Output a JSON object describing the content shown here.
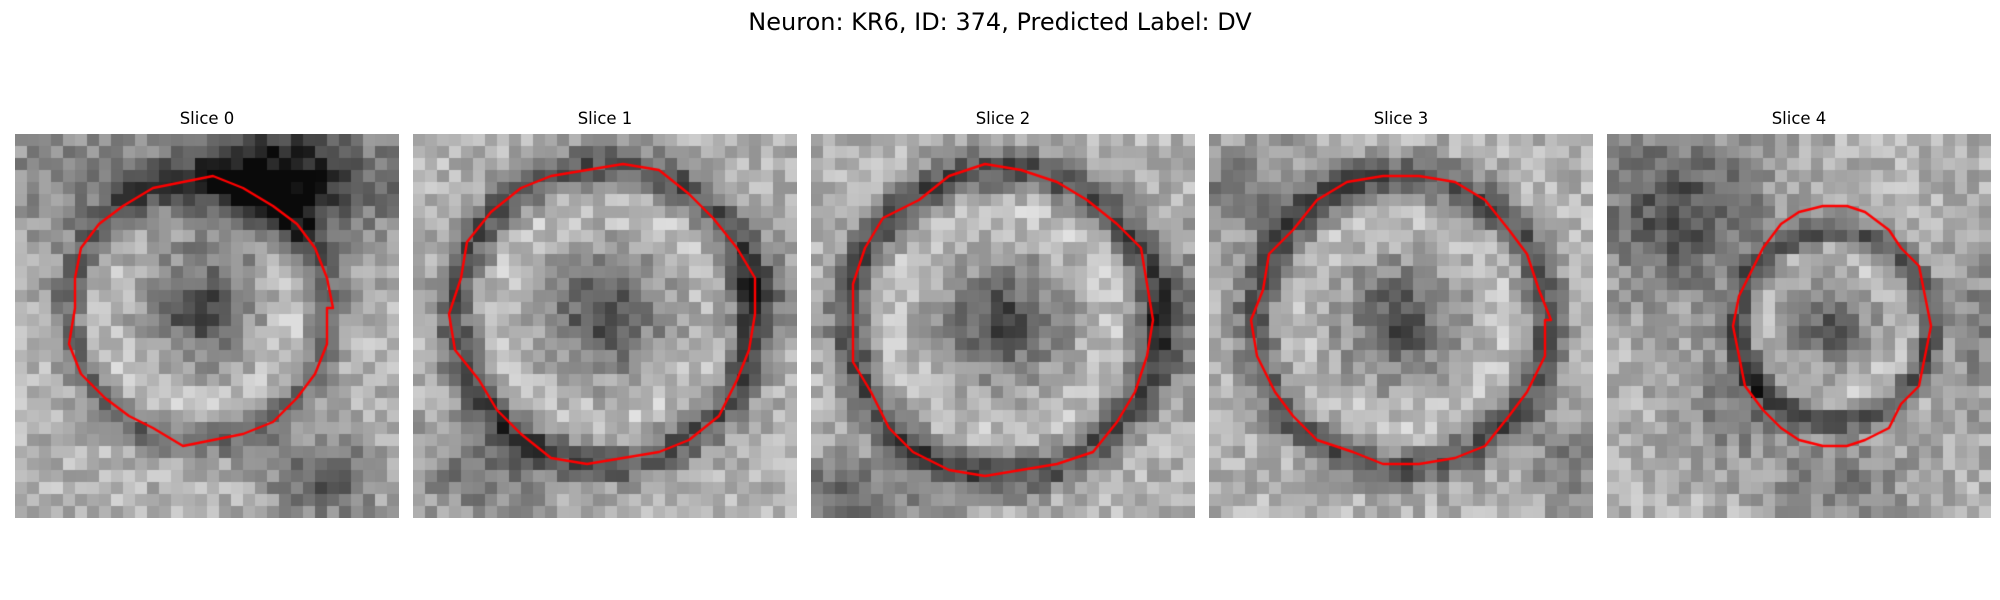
{
  "figure": {
    "title": "Neuron: KR6, ID: 374, Predicted Label: DV",
    "neuron": "KR6",
    "id": "374",
    "predicted_label": "DV"
  },
  "outline_color": "#ff0000",
  "colormap": "gray",
  "slices": [
    {
      "title": "Slice 0"
    },
    {
      "title": "Slice 1"
    },
    {
      "title": "Slice 2"
    },
    {
      "title": "Slice 3"
    },
    {
      "title": "Slice 4"
    }
  ]
}
